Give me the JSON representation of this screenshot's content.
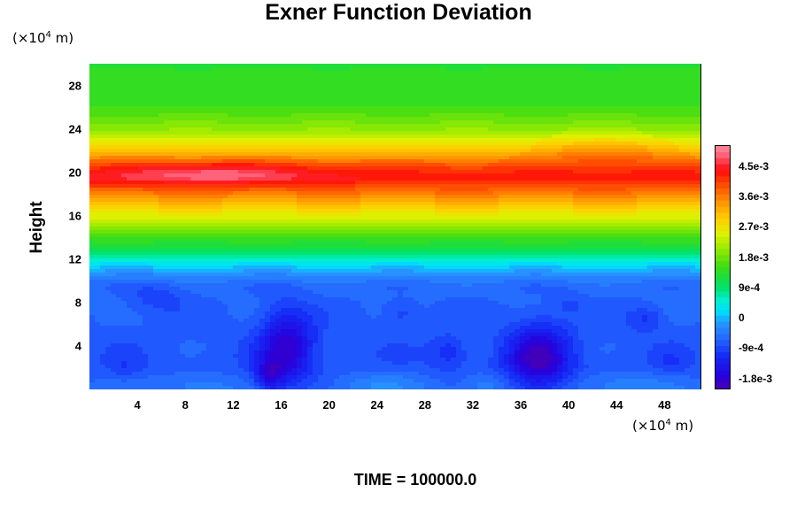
{
  "chart_data": {
    "type": "heatmap",
    "title": "Exner Function Deviation",
    "ylabel": "Height",
    "x_unit_prefix": "(×10",
    "x_unit_exp": "4",
    "x_unit_suffix": " m)",
    "y_unit_prefix": "(×10",
    "y_unit_exp": "4",
    "y_unit_suffix": " m)",
    "xlim": [
      0,
      51
    ],
    "ylim": [
      0,
      30
    ],
    "xticks": [
      "4",
      "8",
      "12",
      "16",
      "20",
      "24",
      "28",
      "32",
      "36",
      "40",
      "44",
      "48"
    ],
    "yticks": [
      "4",
      "8",
      "12",
      "16",
      "20",
      "24",
      "28"
    ],
    "colorbar": {
      "range": [
        -0.0021,
        0.0051
      ],
      "tick_labels": [
        "4.5e-3",
        "3.6e-3",
        "2.7e-3",
        "1.8e-3",
        "9e-4",
        "0",
        "-9e-4",
        "-1.8e-3"
      ],
      "tick_values": [
        0.0045,
        0.0036,
        0.0027,
        0.0018,
        0.0009,
        0,
        -0.0009,
        -0.0018
      ]
    },
    "vertical_profile": [
      {
        "height": 0,
        "value": -0.0006
      },
      {
        "height": 2,
        "value": -0.0008
      },
      {
        "height": 6,
        "value": -0.0007
      },
      {
        "height": 9.5,
        "value": -0.0006
      },
      {
        "height": 10.5,
        "value": -0.0003
      },
      {
        "height": 11.5,
        "value": 0.0002
      },
      {
        "height": 12.5,
        "value": 0.0009
      },
      {
        "height": 14,
        "value": 0.0015
      },
      {
        "height": 16,
        "value": 0.0025
      },
      {
        "height": 18,
        "value": 0.0036
      },
      {
        "height": 19.5,
        "value": 0.0044
      },
      {
        "height": 20.5,
        "value": 0.004
      },
      {
        "height": 22,
        "value": 0.003
      },
      {
        "height": 24,
        "value": 0.002
      },
      {
        "height": 26,
        "value": 0.0015
      },
      {
        "height": 30,
        "value": 0.0013
      }
    ],
    "anomalies": [
      {
        "x": 16.5,
        "y": 4,
        "amplitude": -0.0011,
        "sx": 2.2,
        "sy": 3.5
      },
      {
        "x": 15,
        "y": 1.2,
        "amplitude": -0.0008,
        "sx": 1.2,
        "sy": 1.5
      },
      {
        "x": 37.5,
        "y": 2.8,
        "amplitude": -0.0012,
        "sx": 2.6,
        "sy": 3.2
      },
      {
        "x": 30,
        "y": 3.5,
        "amplitude": -0.0004,
        "sx": 1.5,
        "sy": 1.5
      },
      {
        "x": 5.5,
        "y": 8.5,
        "amplitude": -0.0003,
        "sx": 2.5,
        "sy": 1.5
      },
      {
        "x": 26,
        "y": 7,
        "amplitude": -0.0003,
        "sx": 1.5,
        "sy": 1.2
      },
      {
        "x": 46.5,
        "y": 6.5,
        "amplitude": -0.0004,
        "sx": 1.5,
        "sy": 1.2
      },
      {
        "x": 40,
        "y": 8,
        "amplitude": -0.0002,
        "sx": 1.2,
        "sy": 1.0
      },
      {
        "x": 3,
        "y": 2,
        "amplitude": -0.0002,
        "sx": 1.2,
        "sy": 1.2
      },
      {
        "x": 48.5,
        "y": 2.5,
        "amplitude": -0.0002,
        "sx": 1.2,
        "sy": 1.2
      },
      {
        "x": 9,
        "y": 0.5,
        "amplitude": 0.0003,
        "sx": 3,
        "sy": 1.2
      },
      {
        "x": 24,
        "y": 0.5,
        "amplitude": 0.0003,
        "sx": 4,
        "sy": 1.2
      },
      {
        "x": 33,
        "y": 0.5,
        "amplitude": 0.0003,
        "sx": 2,
        "sy": 1.2
      },
      {
        "x": 44,
        "y": 0.5,
        "amplitude": 0.0003,
        "sx": 4,
        "sy": 1.2
      },
      {
        "x": 10,
        "y": 20,
        "amplitude": 0.0006,
        "sx": 8,
        "sy": 1.0
      },
      {
        "x": 43,
        "y": 22,
        "amplitude": 0.0005,
        "sx": 5,
        "sy": 1.2
      }
    ]
  },
  "footer_label": "TIME = 100000.0"
}
